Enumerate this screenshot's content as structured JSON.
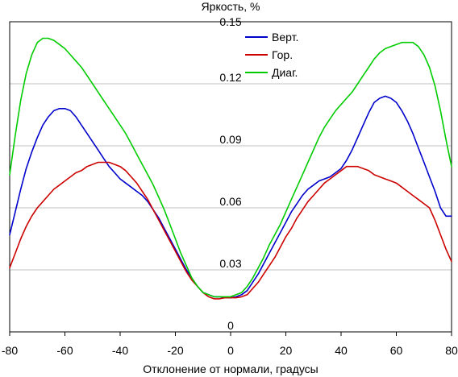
{
  "chart_data": {
    "type": "line",
    "title": "",
    "xlabel": "Отклонение от нормали, градусы",
    "ylabel": "Яркость, %",
    "xlim": [
      -80,
      80
    ],
    "ylim": [
      0,
      0.15
    ],
    "x_ticks": [
      "-80",
      "-60",
      "-40",
      "-20",
      "0",
      "20",
      "40",
      "60",
      "80"
    ],
    "y_ticks": [
      "0",
      "0.03",
      "0.06",
      "0.09",
      "0.12",
      "0.15"
    ],
    "grid": "horizontal",
    "legend_position": "top-center",
    "series": [
      {
        "name": "Верт.",
        "color": "#0000cc",
        "x": [
          -80,
          -78,
          -76,
          -74,
          -72,
          -70,
          -68,
          -66,
          -64,
          -62,
          -60,
          -58,
          -56,
          -54,
          -52,
          -50,
          -48,
          -46,
          -44,
          -42,
          -40,
          -38,
          -36,
          -34,
          -32,
          -30,
          -28,
          -26,
          -24,
          -22,
          -20,
          -18,
          -16,
          -14,
          -12,
          -10,
          -8,
          -6,
          -4,
          -2,
          0,
          2,
          4,
          6,
          8,
          10,
          12,
          14,
          16,
          18,
          20,
          22,
          24,
          26,
          28,
          30,
          32,
          34,
          36,
          38,
          40,
          42,
          44,
          46,
          48,
          50,
          52,
          54,
          56,
          58,
          60,
          62,
          64,
          66,
          68,
          70,
          72,
          74,
          76,
          78,
          80
        ],
        "values": [
          0.047,
          0.058,
          0.069,
          0.079,
          0.087,
          0.094,
          0.1,
          0.104,
          0.107,
          0.108,
          0.108,
          0.107,
          0.104,
          0.1,
          0.096,
          0.092,
          0.088,
          0.084,
          0.08,
          0.077,
          0.074,
          0.072,
          0.07,
          0.068,
          0.066,
          0.063,
          0.059,
          0.055,
          0.05,
          0.045,
          0.04,
          0.035,
          0.03,
          0.026,
          0.022,
          0.019,
          0.018,
          0.017,
          0.017,
          0.0165,
          0.0165,
          0.017,
          0.018,
          0.02,
          0.024,
          0.028,
          0.033,
          0.038,
          0.043,
          0.048,
          0.053,
          0.058,
          0.062,
          0.066,
          0.069,
          0.071,
          0.073,
          0.074,
          0.075,
          0.077,
          0.079,
          0.083,
          0.088,
          0.094,
          0.1,
          0.106,
          0.111,
          0.113,
          0.114,
          0.113,
          0.111,
          0.107,
          0.102,
          0.096,
          0.089,
          0.082,
          0.075,
          0.068,
          0.06,
          0.056,
          0.056
        ]
      },
      {
        "name": "Гор.",
        "color": "#cc0000",
        "x": [
          -80,
          -78,
          -76,
          -74,
          -72,
          -70,
          -68,
          -66,
          -64,
          -62,
          -60,
          -58,
          -56,
          -54,
          -52,
          -50,
          -48,
          -46,
          -44,
          -42,
          -40,
          -38,
          -36,
          -34,
          -32,
          -30,
          -28,
          -26,
          -24,
          -22,
          -20,
          -18,
          -16,
          -14,
          -12,
          -10,
          -8,
          -6,
          -4,
          -2,
          0,
          2,
          4,
          6,
          8,
          10,
          12,
          14,
          16,
          18,
          20,
          22,
          24,
          26,
          28,
          30,
          32,
          34,
          36,
          38,
          40,
          42,
          44,
          46,
          48,
          50,
          52,
          54,
          56,
          58,
          60,
          62,
          64,
          66,
          68,
          70,
          72,
          74,
          76,
          78,
          80
        ],
        "values": [
          0.031,
          0.038,
          0.045,
          0.051,
          0.056,
          0.06,
          0.063,
          0.066,
          0.069,
          0.071,
          0.073,
          0.075,
          0.077,
          0.078,
          0.08,
          0.081,
          0.082,
          0.082,
          0.082,
          0.081,
          0.08,
          0.078,
          0.075,
          0.072,
          0.068,
          0.064,
          0.059,
          0.054,
          0.049,
          0.044,
          0.039,
          0.034,
          0.029,
          0.025,
          0.022,
          0.019,
          0.017,
          0.016,
          0.016,
          0.0165,
          0.0165,
          0.0165,
          0.017,
          0.018,
          0.021,
          0.024,
          0.028,
          0.032,
          0.036,
          0.041,
          0.046,
          0.05,
          0.055,
          0.059,
          0.063,
          0.066,
          0.069,
          0.072,
          0.074,
          0.076,
          0.078,
          0.08,
          0.08,
          0.08,
          0.079,
          0.078,
          0.076,
          0.075,
          0.074,
          0.073,
          0.072,
          0.07,
          0.068,
          0.066,
          0.064,
          0.062,
          0.06,
          0.054,
          0.047,
          0.04,
          0.034
        ]
      },
      {
        "name": "Диаг.",
        "color": "#00cc00",
        "x": [
          -80,
          -78,
          -76,
          -74,
          -72,
          -70,
          -68,
          -66,
          -64,
          -62,
          -60,
          -58,
          -56,
          -54,
          -52,
          -50,
          -48,
          -46,
          -44,
          -42,
          -40,
          -38,
          -36,
          -34,
          -32,
          -30,
          -28,
          -26,
          -24,
          -22,
          -20,
          -18,
          -16,
          -14,
          -12,
          -10,
          -8,
          -6,
          -4,
          -2,
          0,
          2,
          4,
          6,
          8,
          10,
          12,
          14,
          16,
          18,
          20,
          22,
          24,
          26,
          28,
          30,
          32,
          34,
          36,
          38,
          40,
          42,
          44,
          46,
          48,
          50,
          52,
          54,
          56,
          58,
          60,
          62,
          64,
          66,
          68,
          70,
          72,
          74,
          76,
          78,
          80
        ],
        "values": [
          0.076,
          0.095,
          0.112,
          0.125,
          0.134,
          0.14,
          0.142,
          0.142,
          0.141,
          0.139,
          0.137,
          0.134,
          0.131,
          0.128,
          0.124,
          0.12,
          0.116,
          0.112,
          0.108,
          0.104,
          0.1,
          0.096,
          0.091,
          0.086,
          0.081,
          0.076,
          0.071,
          0.065,
          0.059,
          0.052,
          0.045,
          0.038,
          0.032,
          0.026,
          0.022,
          0.019,
          0.018,
          0.017,
          0.017,
          0.017,
          0.017,
          0.018,
          0.019,
          0.022,
          0.026,
          0.031,
          0.036,
          0.042,
          0.047,
          0.052,
          0.058,
          0.064,
          0.07,
          0.076,
          0.082,
          0.088,
          0.094,
          0.099,
          0.103,
          0.107,
          0.11,
          0.113,
          0.116,
          0.12,
          0.124,
          0.128,
          0.132,
          0.135,
          0.137,
          0.138,
          0.139,
          0.14,
          0.14,
          0.14,
          0.138,
          0.134,
          0.128,
          0.119,
          0.107,
          0.093,
          0.08
        ]
      }
    ]
  }
}
